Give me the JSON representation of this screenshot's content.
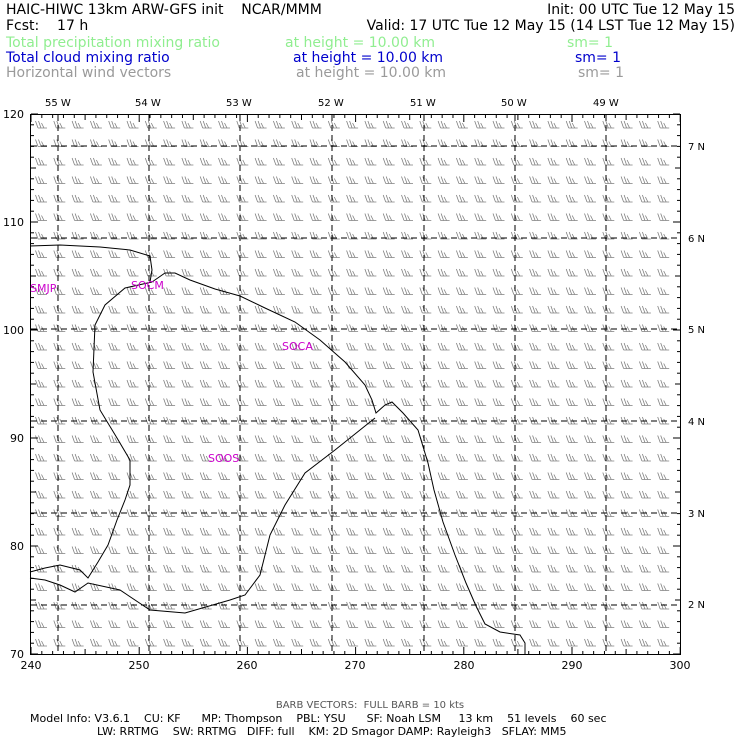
{
  "header": {
    "line1_left": "HAIC-HIWC 13km ARW-GFS init    NCAR/MMM",
    "line1_right": "Init: 00 UTC Tue 12 May 15",
    "line2_left": "Fcst:    17 h",
    "line2_right": "Valid: 17 UTC Tue 12 May 15 (14 LST Tue 12 May 15)",
    "fields": [
      {
        "name": "Total precipitation mixing ratio",
        "level": "at height = 10.00 km",
        "sm": "sm= 1",
        "color": "#90ee90"
      },
      {
        "name": "Total cloud mixing ratio",
        "level": "at height = 10.00 km",
        "sm": "sm= 1",
        "color": "#0000cc"
      },
      {
        "name": "Horizontal wind vectors",
        "level": "at height = 10.00 km",
        "sm": "sm= 1",
        "color": "#9a9a9a"
      }
    ]
  },
  "map": {
    "lon_labels": [
      "55 W",
      "54 W",
      "53 W",
      "52 W",
      "51 W",
      "50 W",
      "49 W"
    ],
    "lat_labels": [
      "7 N",
      "6 N",
      "5 N",
      "4 N",
      "3 N",
      "2 N"
    ],
    "x_ticks": [
      "240",
      "250",
      "260",
      "270",
      "280",
      "290",
      "300"
    ],
    "y_ticks": [
      "120",
      "110",
      "100",
      "90",
      "80",
      "70"
    ],
    "stations": [
      "SMJP",
      "SOCM",
      "SOCA",
      "SOOS"
    ],
    "station_color": "#cc00cc",
    "coast_color": "#000000",
    "barb_color": "#808080"
  },
  "footer": {
    "barb_note": "BARB VECTORS:  FULL BARB = 10 kts",
    "model_line1": "Model Info: V3.6.1    CU: KF      MP: Thompson    PBL: YSU      SF: Noah LSM     13 km    51 levels    60 sec",
    "model_line2": "LW: RRTMG    SW: RRTMG   DIFF: full    KM: 2D Smagor DAMP: Rayleigh3   SFLAY: MM5"
  }
}
